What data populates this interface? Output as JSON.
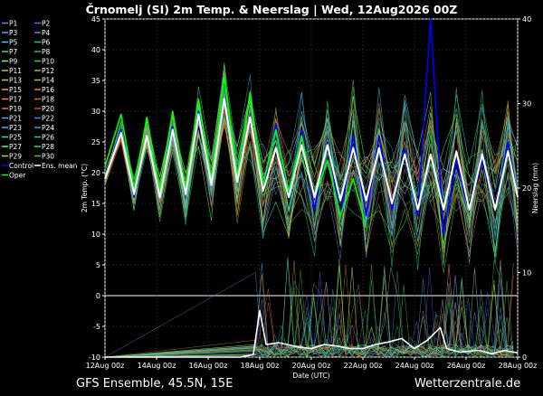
{
  "chart_data": {
    "type": "line",
    "title": "Črnomelj  (SI)  2m Temp. & Neerslag | Wed, 12Aug2026 00Z",
    "xlabel": "Date (UTC)",
    "ylabel": "2m Temp. (°C)",
    "y2label": "Neerslag (mm)",
    "ylim": [
      -10,
      45
    ],
    "y2lim": [
      0,
      40
    ],
    "yticks": [
      "45",
      "40",
      "35",
      "30",
      "25",
      "20",
      "15",
      "10",
      "5",
      "0",
      "-5",
      "-10"
    ],
    "y2ticks": [
      "40",
      "30",
      "20",
      "10",
      "0"
    ],
    "xlim": [
      "2026-08-12T00",
      "2026-08-28T00"
    ],
    "xticks": [
      "12Aug 00z",
      "14Aug 00z",
      "16Aug 00z",
      "18Aug 00z",
      "20Aug 00z",
      "22Aug 00z",
      "24Aug 00z",
      "26Aug 00z",
      "28Aug 00z"
    ],
    "grid": true,
    "legend_position": "top-left",
    "legend": [
      {
        "name": "P1",
        "color": "#7878ff"
      },
      {
        "name": "P2",
        "color": "#6666ff"
      },
      {
        "name": "P3",
        "color": "#58a0ff"
      },
      {
        "name": "P4",
        "color": "#4f86d8"
      },
      {
        "name": "P5",
        "color": "#40c8ff"
      },
      {
        "name": "P6",
        "color": "#20c0a0"
      },
      {
        "name": "P7",
        "color": "#30d8c0"
      },
      {
        "name": "P8",
        "color": "#20b890"
      },
      {
        "name": "P9",
        "color": "#70ff60"
      },
      {
        "name": "P10",
        "color": "#40d040"
      },
      {
        "name": "P11",
        "color": "#a8d040"
      },
      {
        "name": "P12",
        "color": "#80c030"
      },
      {
        "name": "P13",
        "color": "#e0c040"
      },
      {
        "name": "P14",
        "color": "#d0b030"
      },
      {
        "name": "P15",
        "color": "#f0a040"
      },
      {
        "name": "P16",
        "color": "#e08830"
      },
      {
        "name": "P17",
        "color": "#ff8040"
      },
      {
        "name": "P18",
        "color": "#e06a30"
      },
      {
        "name": "P19",
        "color": "#ff6060"
      },
      {
        "name": "P20",
        "color": "#d04040"
      },
      {
        "name": "P21",
        "color": "#70a0ff"
      },
      {
        "name": "P22",
        "color": "#5080e0"
      },
      {
        "name": "P23",
        "color": "#40c0e0"
      },
      {
        "name": "P24",
        "color": "#30a8c0"
      },
      {
        "name": "P25",
        "color": "#40e0b0"
      },
      {
        "name": "P26",
        "color": "#30c898"
      },
      {
        "name": "P27",
        "color": "#50ff90"
      },
      {
        "name": "P28",
        "color": "#30d870"
      },
      {
        "name": "P29",
        "color": "#a0e050"
      },
      {
        "name": "P30",
        "color": "#60c030"
      },
      {
        "name": "Control",
        "color": "#0000ff"
      },
      {
        "name": "Ens. mean",
        "color": "#ffffff"
      },
      {
        "name": "Oper",
        "color": "#00ff00"
      }
    ],
    "temp_ens_mean": [
      {
        "x": "2026-08-12T00",
        "y": 19
      },
      {
        "x": "2026-08-12T15",
        "y": 26.5
      },
      {
        "x": "2026-08-13T03",
        "y": 16.5
      },
      {
        "x": "2026-08-13T15",
        "y": 26
      },
      {
        "x": "2026-08-14T03",
        "y": 16
      },
      {
        "x": "2026-08-14T15",
        "y": 27
      },
      {
        "x": "2026-08-15T03",
        "y": 16.5
      },
      {
        "x": "2026-08-15T15",
        "y": 29.5
      },
      {
        "x": "2026-08-16T03",
        "y": 18
      },
      {
        "x": "2026-08-16T15",
        "y": 32
      },
      {
        "x": "2026-08-17T03",
        "y": 18.5
      },
      {
        "x": "2026-08-17T15",
        "y": 29
      },
      {
        "x": "2026-08-18T03",
        "y": 17
      },
      {
        "x": "2026-08-18T15",
        "y": 24
      },
      {
        "x": "2026-08-19T03",
        "y": 16
      },
      {
        "x": "2026-08-19T15",
        "y": 24.5
      },
      {
        "x": "2026-08-20T03",
        "y": 16
      },
      {
        "x": "2026-08-20T15",
        "y": 24.5
      },
      {
        "x": "2026-08-21T03",
        "y": 15.5
      },
      {
        "x": "2026-08-21T15",
        "y": 24
      },
      {
        "x": "2026-08-22T03",
        "y": 15.5
      },
      {
        "x": "2026-08-22T15",
        "y": 24
      },
      {
        "x": "2026-08-23T03",
        "y": 15
      },
      {
        "x": "2026-08-23T15",
        "y": 23
      },
      {
        "x": "2026-08-24T03",
        "y": 14
      },
      {
        "x": "2026-08-24T15",
        "y": 23
      },
      {
        "x": "2026-08-25T03",
        "y": 14
      },
      {
        "x": "2026-08-25T15",
        "y": 23.5
      },
      {
        "x": "2026-08-26T03",
        "y": 14
      },
      {
        "x": "2026-08-26T15",
        "y": 23
      },
      {
        "x": "2026-08-27T03",
        "y": 14
      },
      {
        "x": "2026-08-27T15",
        "y": 23.5
      },
      {
        "x": "2026-08-28T00",
        "y": 16
      }
    ],
    "temp_oper": [
      {
        "x": "2026-08-12T00",
        "y": 21
      },
      {
        "x": "2026-08-12T15",
        "y": 29.5
      },
      {
        "x": "2026-08-13T03",
        "y": 17.5
      },
      {
        "x": "2026-08-13T15",
        "y": 29
      },
      {
        "x": "2026-08-14T03",
        "y": 17
      },
      {
        "x": "2026-08-14T15",
        "y": 30
      },
      {
        "x": "2026-08-15T03",
        "y": 17.5
      },
      {
        "x": "2026-08-15T15",
        "y": 32
      },
      {
        "x": "2026-08-16T03",
        "y": 19
      },
      {
        "x": "2026-08-16T15",
        "y": 35.5
      },
      {
        "x": "2026-08-17T03",
        "y": 19.5
      },
      {
        "x": "2026-08-17T15",
        "y": 33
      },
      {
        "x": "2026-08-18T03",
        "y": 18
      },
      {
        "x": "2026-08-18T15",
        "y": 27
      },
      {
        "x": "2026-08-19T03",
        "y": 17
      },
      {
        "x": "2026-08-19T15",
        "y": 26
      },
      {
        "x": "2026-08-20T03",
        "y": 16
      },
      {
        "x": "2026-08-20T15",
        "y": 22
      },
      {
        "x": "2026-08-21T03",
        "y": 13
      },
      {
        "x": "2026-08-21T15",
        "y": 19
      },
      {
        "x": "2026-08-22T03",
        "y": 11
      }
    ],
    "temp_control": [
      {
        "x": "2026-08-12T00",
        "y": 19
      },
      {
        "x": "2026-08-12T15",
        "y": 27
      },
      {
        "x": "2026-08-13T03",
        "y": 16
      },
      {
        "x": "2026-08-13T15",
        "y": 26
      },
      {
        "x": "2026-08-14T03",
        "y": 16
      },
      {
        "x": "2026-08-14T15",
        "y": 27.5
      },
      {
        "x": "2026-08-15T03",
        "y": 16.5
      },
      {
        "x": "2026-08-15T15",
        "y": 30
      },
      {
        "x": "2026-08-16T03",
        "y": 18
      },
      {
        "x": "2026-08-16T15",
        "y": 32
      },
      {
        "x": "2026-08-17T03",
        "y": 18.5
      },
      {
        "x": "2026-08-17T15",
        "y": 29
      },
      {
        "x": "2026-08-18T03",
        "y": 17
      },
      {
        "x": "2026-08-18T15",
        "y": 28
      },
      {
        "x": "2026-08-19T03",
        "y": 16
      },
      {
        "x": "2026-08-19T15",
        "y": 27
      },
      {
        "x": "2026-08-20T03",
        "y": 14
      },
      {
        "x": "2026-08-20T15",
        "y": 25
      },
      {
        "x": "2026-08-21T03",
        "y": 13
      },
      {
        "x": "2026-08-21T15",
        "y": 26
      },
      {
        "x": "2026-08-22T03",
        "y": 13
      },
      {
        "x": "2026-08-22T15",
        "y": 26
      },
      {
        "x": "2026-08-23T03",
        "y": 14
      },
      {
        "x": "2026-08-23T15",
        "y": 24
      },
      {
        "x": "2026-08-24T03",
        "y": 13
      },
      {
        "x": "2026-08-24T15",
        "y": 45
      },
      {
        "x": "2026-08-25T03",
        "y": 10
      },
      {
        "x": "2026-08-25T15",
        "y": 22
      },
      {
        "x": "2026-08-26T03",
        "y": 14
      },
      {
        "x": "2026-08-26T15",
        "y": 22
      },
      {
        "x": "2026-08-27T03",
        "y": 14
      },
      {
        "x": "2026-08-27T15",
        "y": 25
      },
      {
        "x": "2026-08-28T00",
        "y": 16
      }
    ],
    "precip_ens_mean_mm": [
      {
        "x": "2026-08-12T00",
        "y": 0
      },
      {
        "x": "2026-08-17T06",
        "y": 0
      },
      {
        "x": "2026-08-17T18",
        "y": 0.3
      },
      {
        "x": "2026-08-18T00",
        "y": 5.5
      },
      {
        "x": "2026-08-18T06",
        "y": 1.5
      },
      {
        "x": "2026-08-18T18",
        "y": 1.7
      },
      {
        "x": "2026-08-19T12",
        "y": 1.2
      },
      {
        "x": "2026-08-20T00",
        "y": 1
      },
      {
        "x": "2026-08-20T12",
        "y": 1.5
      },
      {
        "x": "2026-08-21T00",
        "y": 1.3
      },
      {
        "x": "2026-08-21T12",
        "y": 1
      },
      {
        "x": "2026-08-22T00",
        "y": 1
      },
      {
        "x": "2026-08-22T12",
        "y": 1.5
      },
      {
        "x": "2026-08-23T00",
        "y": 1.8
      },
      {
        "x": "2026-08-23T12",
        "y": 2.2
      },
      {
        "x": "2026-08-24T00",
        "y": 1
      },
      {
        "x": "2026-08-24T12",
        "y": 2
      },
      {
        "x": "2026-08-25T00",
        "y": 3.5
      },
      {
        "x": "2026-08-25T06",
        "y": 1
      },
      {
        "x": "2026-08-25T18",
        "y": 0.6
      },
      {
        "x": "2026-08-26T12",
        "y": 0.8
      },
      {
        "x": "2026-08-27T00",
        "y": 0.4
      },
      {
        "x": "2026-08-27T12",
        "y": 0.8
      },
      {
        "x": "2026-08-28T00",
        "y": 0.5
      }
    ]
  },
  "footer": {
    "left": "GFS Ensemble, 45.5N, 15E",
    "right": "Wetterzentrale.de"
  }
}
